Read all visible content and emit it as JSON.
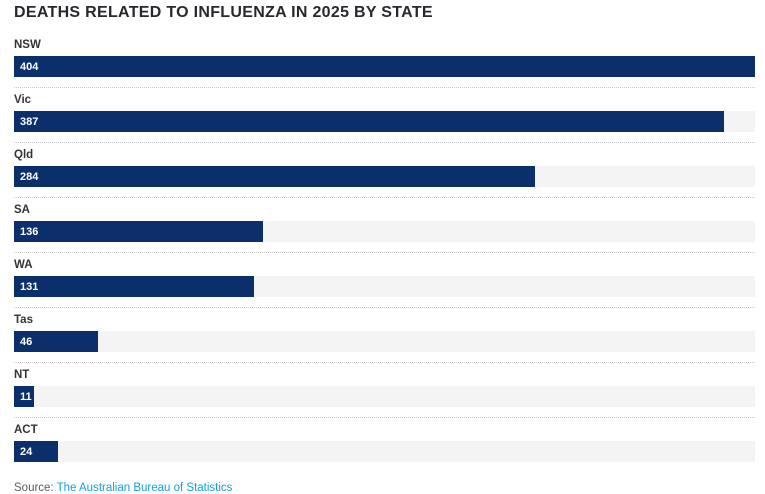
{
  "title": "DEATHS RELATED TO INFLUENZA IN 2025 BY STATE",
  "source": {
    "prefix": "Source: ",
    "link_text": "The Australian Bureau of Statistics"
  },
  "colors": {
    "bar": "#0b2f6a",
    "track": "#f4f4f4",
    "title": "#28282e",
    "label": "#333338",
    "separator": "#c9c9c9",
    "source_text": "#5b5b60",
    "link": "#14a0de"
  },
  "chart_data": {
    "type": "bar",
    "orientation": "horizontal",
    "title": "DEATHS RELATED TO INFLUENZA IN 2025 BY STATE",
    "categories": [
      "NSW",
      "Vic",
      "Qld",
      "SA",
      "WA",
      "Tas",
      "NT",
      "ACT"
    ],
    "values": [
      404,
      387,
      284,
      136,
      131,
      46,
      11,
      24
    ],
    "xlabel": "",
    "ylabel": "",
    "xlim": [
      0,
      404
    ],
    "grid": false,
    "legend": false,
    "value_labels": "inside-bar-left",
    "value_label_color": "#ffffff"
  }
}
